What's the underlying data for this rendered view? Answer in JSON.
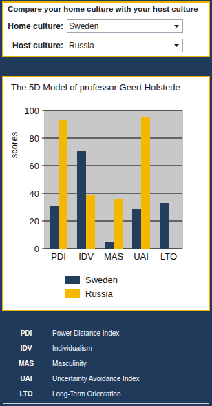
{
  "header": {
    "title": "Compare your home culture with your host culture",
    "fields": [
      {
        "label": "Home culture:",
        "value": "Sweden"
      },
      {
        "label": "Host culture:",
        "value": "Russia"
      }
    ]
  },
  "chart_data": {
    "type": "bar",
    "title": "The 5D Model of professor Geert Hofstede",
    "y_label": "scores",
    "categories": [
      "PDI",
      "IDV",
      "MAS",
      "UAI",
      "LTO"
    ],
    "series": [
      {
        "name": "Sweden",
        "color": "#243f5e",
        "values": [
          31,
          71,
          5,
          29,
          33
        ]
      },
      {
        "name": "Russia",
        "color": "#f5b800",
        "values": [
          93,
          39,
          36,
          95,
          null
        ]
      }
    ],
    "ylim": [
      0,
      100
    ],
    "yticks": [
      0,
      20,
      40,
      60,
      80,
      100
    ],
    "grid": true,
    "legend": "bottom"
  },
  "glossary": [
    {
      "abbr": "PDI",
      "term": "Power Distance Index"
    },
    {
      "abbr": "IDV",
      "term": "Individualism"
    },
    {
      "abbr": "MAS",
      "term": "Masculinity"
    },
    {
      "abbr": "UAI",
      "term": "Uncertainty Avoidance Index"
    },
    {
      "abbr": "LTO",
      "term": "Long-Term Orientation"
    }
  ]
}
